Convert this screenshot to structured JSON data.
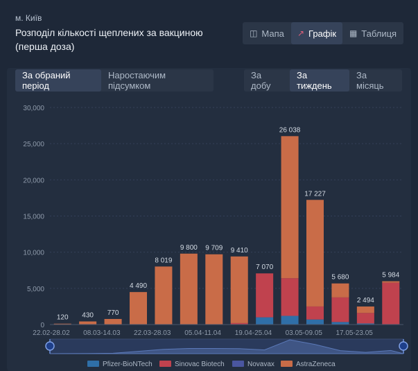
{
  "header": {
    "city": "м. Київ",
    "title": "Розподіл кількості щеплених за вакциною (перша доза)"
  },
  "view_tabs": [
    {
      "label": "Мапа",
      "icon": "map-icon",
      "active": false
    },
    {
      "label": "Графік",
      "icon": "chart-icon",
      "active": true
    },
    {
      "label": "Таблиця",
      "icon": "table-icon",
      "active": false
    }
  ],
  "mode_tabs": [
    {
      "label": "За обраний період",
      "active": true
    },
    {
      "label": "Наростаючим підсумком",
      "active": false
    }
  ],
  "period_tabs": [
    {
      "label": "За добу",
      "active": false
    },
    {
      "label": "За тиждень",
      "active": true
    },
    {
      "label": "За місяць",
      "active": false
    }
  ],
  "colors": {
    "pfizer": "#2f6fa8",
    "sinovac": "#c0424e",
    "novavax": "#4a56a0",
    "astrazeneca": "#c96c48",
    "accent": "#e0607a"
  },
  "chart_data": {
    "type": "bar",
    "stacked": true,
    "ylim": [
      0,
      30000
    ],
    "yticks": [
      "0",
      "5,000",
      "10,000",
      "15,000",
      "20,000",
      "25,000",
      "30,000"
    ],
    "ytick_values": [
      0,
      5000,
      10000,
      15000,
      20000,
      25000,
      30000
    ],
    "x_tick_labels": [
      "22.02-28.02",
      "08.03-14.03",
      "22.03-28.03",
      "05.04-11.04",
      "19.04-25.04",
      "03.05-09.05",
      "17.05-23.05"
    ],
    "x_tick_indices": [
      0,
      2,
      4,
      6,
      8,
      10,
      12
    ],
    "totals": [
      120,
      430,
      770,
      4490,
      8019,
      9800,
      9709,
      9410,
      7070,
      26038,
      17227,
      5680,
      2494,
      5984
    ],
    "total_labels": [
      "120",
      "430",
      "770",
      "4 490",
      "8 019",
      "9 800",
      "9 709",
      "9 410",
      "7 070",
      "26 038",
      "17 227",
      "5 680",
      "2 494",
      "5 984"
    ],
    "series": [
      {
        "name": "Pfizer-BioNTech",
        "color": "#2f6fa8",
        "values": [
          0,
          0,
          0,
          0,
          0,
          0,
          0,
          0,
          1000,
          1200,
          700,
          350,
          150,
          0
        ]
      },
      {
        "name": "Sinovac Biotech",
        "color": "#c0424e",
        "values": [
          0,
          0,
          0,
          0,
          0,
          0,
          0,
          200,
          6070,
          5200,
          1800,
          3400,
          1450,
          5784
        ]
      },
      {
        "name": "Novavax",
        "color": "#4a56a0",
        "values": [
          0,
          0,
          0,
          0,
          0,
          0,
          0,
          0,
          0,
          0,
          0,
          0,
          0,
          0
        ]
      },
      {
        "name": "AstraZeneca",
        "color": "#c96c48",
        "values": [
          120,
          430,
          770,
          4490,
          8019,
          9800,
          9709,
          9210,
          0,
          19638,
          14727,
          1930,
          894,
          200
        ]
      }
    ],
    "legend_position": "bottom"
  }
}
